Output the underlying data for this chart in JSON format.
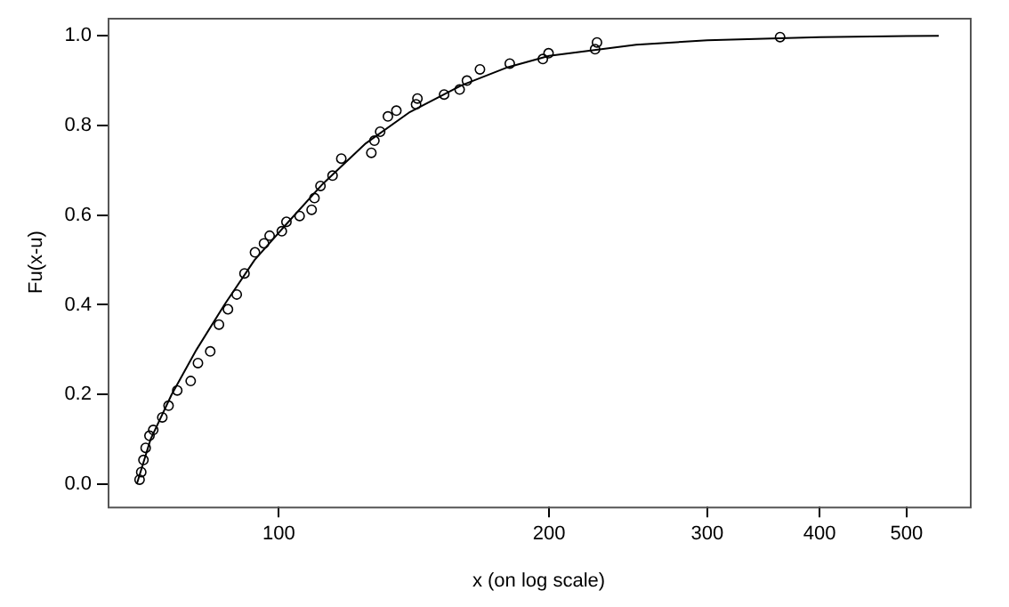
{
  "chart_data": {
    "type": "scatter",
    "xlabel": "x (on log scale)",
    "ylabel": "Fu(x-u)",
    "log": "x",
    "grid": false,
    "legend": false,
    "line_style": "solid",
    "xlim": [
      64.5,
      588
    ],
    "xticks": [
      100,
      200,
      300,
      400,
      500
    ],
    "ylim": [
      -0.05,
      1.04
    ],
    "yticks": [
      {
        "value": 0,
        "label": "0.0"
      },
      {
        "value": 0.2,
        "label": "0.2"
      },
      {
        "value": 0.4,
        "label": "0.4"
      },
      {
        "value": 0.6,
        "label": "0.6"
      },
      {
        "value": 0.8,
        "label": "0.8"
      },
      {
        "value": 1,
        "label": "1.0"
      }
    ],
    "series": [
      {
        "type": "scatter",
        "marker": "circle",
        "color": "#000000",
        "x": [
          70.0,
          70.3,
          70.7,
          71.1,
          71.8,
          72.5,
          74.2,
          75.4,
          77.1,
          79.8,
          81.3,
          83.9,
          85.8,
          87.8,
          89.8,
          91.6,
          94.1,
          96.3,
          97.7,
          100.8,
          102.0,
          105.5,
          108.8,
          109.6,
          111.3,
          114.8,
          117.4,
          126.8,
          127.8,
          129.7,
          132.3,
          135.2,
          142.2,
          142.7,
          152.8,
          159.0,
          162.0,
          167.5,
          180.8,
          196.8,
          199.7,
          225.0,
          226.1,
          361.5
        ],
        "values": [
          0.01,
          0.027,
          0.054,
          0.081,
          0.108,
          0.121,
          0.149,
          0.175,
          0.209,
          0.23,
          0.27,
          0.296,
          0.356,
          0.39,
          0.423,
          0.47,
          0.517,
          0.537,
          0.554,
          0.564,
          0.585,
          0.598,
          0.612,
          0.638,
          0.665,
          0.688,
          0.726,
          0.739,
          0.766,
          0.786,
          0.82,
          0.833,
          0.847,
          0.86,
          0.869,
          0.88,
          0.9,
          0.925,
          0.938,
          0.948,
          0.961,
          0.97,
          0.985,
          0.997
        ]
      },
      {
        "type": "line",
        "marker": "none",
        "color": "#000000",
        "x": [
          69.5,
          72,
          76,
          81,
          87,
          94,
          102,
          112,
          125,
          140,
          160,
          180,
          200,
          250,
          300,
          400,
          543
        ],
        "values": [
          0,
          0.1,
          0.2,
          0.3,
          0.4,
          0.5,
          0.58,
          0.67,
          0.76,
          0.83,
          0.89,
          0.93,
          0.955,
          0.98,
          0.99,
          0.997,
          1.0
        ]
      }
    ]
  }
}
